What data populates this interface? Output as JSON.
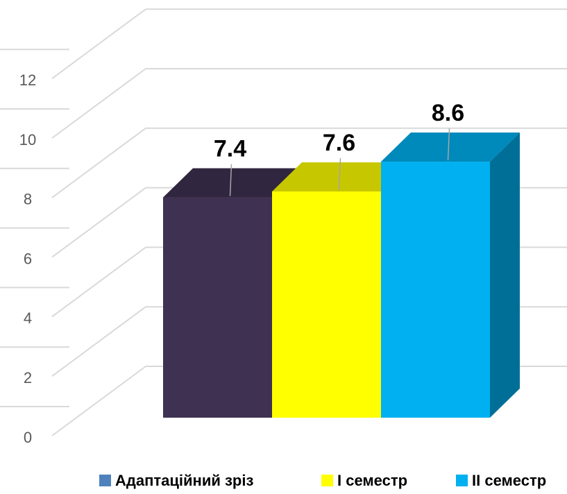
{
  "chart_data": {
    "type": "bar3d",
    "series": [
      {
        "name": "Адаптаційний зріз",
        "color": "#3f3151",
        "legend_color": "#4f81bd",
        "values": [
          7.4
        ]
      },
      {
        "name": "I семестр",
        "color": "#ffff00",
        "legend_color": "#ffff00",
        "values": [
          7.6
        ]
      },
      {
        "name": "II семестр",
        "color": "#00b0f0",
        "legend_color": "#00b0f0",
        "values": [
          8.6
        ]
      }
    ],
    "ylim": [
      0,
      12
    ],
    "yticks": [
      0,
      2,
      4,
      6,
      8,
      10,
      12
    ],
    "grid": true
  }
}
